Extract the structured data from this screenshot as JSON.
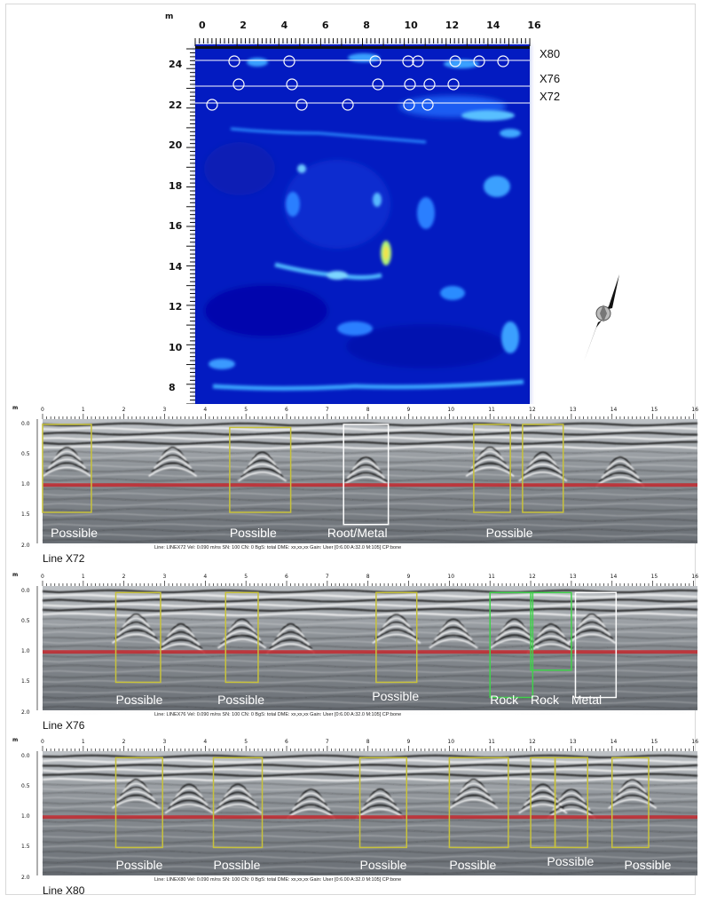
{
  "slice": {
    "unit": "m",
    "x_ticks": [
      "0",
      "2",
      "4",
      "6",
      "8",
      "10",
      "12",
      "14",
      "16"
    ],
    "y_ticks": [
      "24",
      "22",
      "20",
      "18",
      "16",
      "14",
      "12",
      "10",
      "8"
    ],
    "line_labels": [
      "X80",
      "X76",
      "X72"
    ]
  },
  "profiles": [
    {
      "name": "Line X72",
      "unit": "m",
      "x_ticks": [
        "0",
        "1",
        "2",
        "3",
        "4",
        "5",
        "6",
        "7",
        "8",
        "9",
        "10",
        "11",
        "12",
        "13",
        "14",
        "15",
        "16"
      ],
      "depth_ticks": [
        "0.0",
        "0.5",
        "1.0",
        "1.5",
        "2.0"
      ],
      "info": "Line: LINEX72  Vel: 0.090 m/ns  SN: 100  CN: 0  BgS: total  DME: xx,xx,xx  Gain: User [0:6.00 A:32.0 M:105]  CP:bone",
      "labels": [
        "Possible",
        "Possible",
        "Root/Metal",
        "Possible"
      ]
    },
    {
      "name": "Line X76",
      "unit": "m",
      "x_ticks": [
        "0",
        "1",
        "2",
        "3",
        "4",
        "5",
        "6",
        "7",
        "8",
        "9",
        "10",
        "11",
        "12",
        "13",
        "14",
        "15",
        "16"
      ],
      "depth_ticks": [
        "0.0",
        "0.5",
        "1.0",
        "1.5",
        "2.0"
      ],
      "info": "Line: LINEX76  Vel: 0.090 m/ns  SN: 100  CN: 0  BgS: total  DME: xx,xx,xx  Gain: User [0:6.00 A:32.0 M:105]  CP:bone",
      "labels": [
        "Possible",
        "Possible",
        "Possible",
        "Rock",
        "Rock",
        "Metal"
      ]
    },
    {
      "name": "Line X80",
      "unit": "m",
      "x_ticks": [
        "0",
        "1",
        "2",
        "3",
        "4",
        "5",
        "6",
        "7",
        "8",
        "9",
        "10",
        "11",
        "12",
        "13",
        "14",
        "15",
        "16"
      ],
      "depth_ticks": [
        "0.0",
        "0.5",
        "1.0",
        "1.5",
        "2.0"
      ],
      "info": "Line: LINEX80  Vel: 0.090 m/ns  SN: 100  CN: 0  BgS: total  DME: xx,xx,xx  Gain: User [0:6.00 A:32.0 M:105]  CP:bone",
      "labels": [
        "Possible",
        "Possible",
        "Possible",
        "Possible",
        "Possible",
        "Possible"
      ]
    }
  ]
}
